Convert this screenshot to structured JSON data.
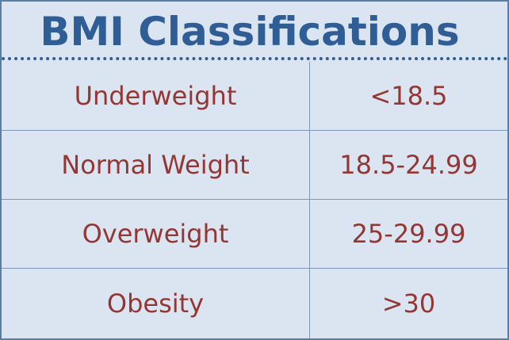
{
  "title": "BMI Classifications",
  "rows": [
    {
      "classification": "Underweight",
      "range": "<18.5"
    },
    {
      "classification": "Normal Weight",
      "range": "18.5-24.99"
    },
    {
      "classification": "Overweight",
      "range": "25-29.99"
    },
    {
      "classification": "Obesity",
      "range": ">30"
    }
  ],
  "colors": {
    "background": "#dbe5f1",
    "title": "#2f5d95",
    "text": "#943634",
    "grid": "#7f97b5"
  }
}
